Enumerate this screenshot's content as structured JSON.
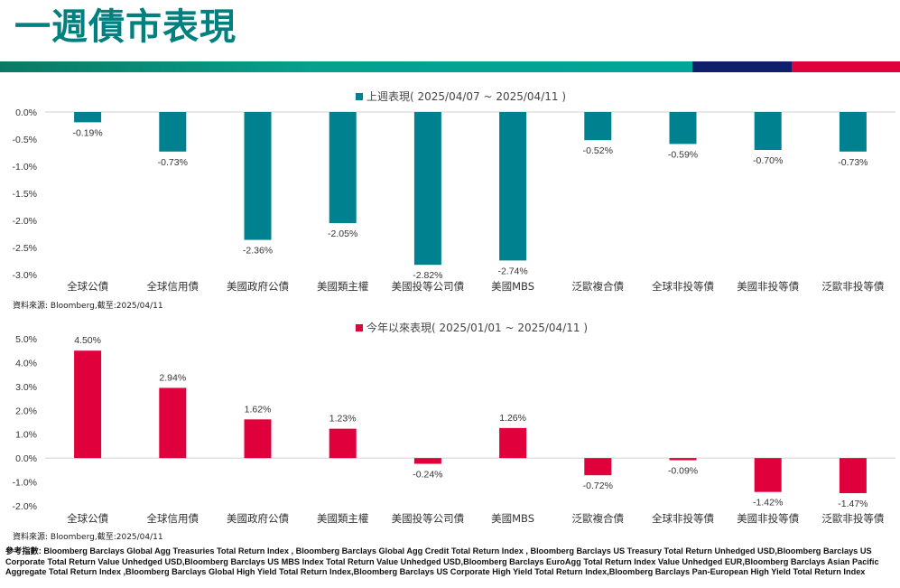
{
  "header": {
    "title": "一週債市表現"
  },
  "colors": {
    "teal": "#00818f",
    "red": "#e0003c",
    "navy": "#0f1f6b",
    "title": "#00807f"
  },
  "chart_data": [
    {
      "type": "bar",
      "legend": "上週表現( 2025/04/07 ~ 2025/04/11 )",
      "color": "#00818f",
      "categories": [
        "全球公債",
        "全球信用債",
        "美國政府公債",
        "美國類主權",
        "美國投等公司債",
        "美國MBS",
        "泛歐複合債",
        "全球非投等債",
        "美國非投等債",
        "泛歐非投等債"
      ],
      "values": [
        -0.19,
        -0.73,
        -2.36,
        -2.05,
        -2.82,
        -2.74,
        -0.52,
        -0.59,
        -0.7,
        -0.73
      ],
      "value_labels": [
        "-0.19%",
        "-0.73%",
        "-2.36%",
        "-2.05%",
        "-2.82%",
        "-2.74%",
        "-0.52%",
        "-0.59%",
        "-0.70%",
        "-0.73%"
      ],
      "ylim": [
        -3.0,
        0.0
      ],
      "y_ticks": [
        0.0,
        -0.5,
        -1.0,
        -1.5,
        -2.0,
        -2.5,
        -3.0
      ],
      "y_tick_labels": [
        "0.0%",
        "-0.5%",
        "-1.0%",
        "-1.5%",
        "-2.0%",
        "-2.5%",
        "-3.0%"
      ],
      "source": "資料來源: Bloomberg,截至:2025/04/11"
    },
    {
      "type": "bar",
      "legend": "今年以來表現( 2025/01/01 ~ 2025/04/11 )",
      "color": "#e0003c",
      "categories": [
        "全球公債",
        "全球信用債",
        "美國政府公債",
        "美國類主權",
        "美國投等公司債",
        "美國MBS",
        "泛歐複合債",
        "全球非投等債",
        "美國非投等債",
        "泛歐非投等債"
      ],
      "values": [
        4.5,
        2.94,
        1.62,
        1.23,
        -0.24,
        1.26,
        -0.72,
        -0.09,
        -1.42,
        -1.47
      ],
      "value_labels": [
        "4.50%",
        "2.94%",
        "1.62%",
        "1.23%",
        "-0.24%",
        "1.26%",
        "-0.72%",
        "-0.09%",
        "-1.42%",
        "-1.47%"
      ],
      "ylim": [
        -2.0,
        5.0
      ],
      "y_ticks": [
        5.0,
        4.0,
        3.0,
        2.0,
        1.0,
        0.0,
        -1.0,
        -2.0
      ],
      "y_tick_labels": [
        "5.0%",
        "4.0%",
        "3.0%",
        "2.0%",
        "1.0%",
        "0.0%",
        "-1.0%",
        "-2.0%"
      ],
      "source": "資料來源: Bloomberg,截至:2025/04/11"
    }
  ],
  "footer": {
    "references": "參考指數: Bloomberg Barclays Global Agg Treasuries Total Return Index , Bloomberg Barclays Global Agg Credit Total Return Index , Bloomberg Barclays US Treasury Total Return Unhedged USD,Bloomberg Barclays US Corporate Total Return Value Unhedged USD,Bloomberg Barclays US MBS Index Total Return Value Unhedged USD,Bloomberg Barclays EuroAgg Total Return Index Value Unhedged EUR,Bloomberg Barclays Asian Pacific Aggregate Total Return Index ,Bloomberg Barclays Global High Yield Total Return Index,Bloomberg Barclays US Corporate High Yield Total Return Index,Bloomberg Barclays Pan-European High Yield Total Return Index"
  }
}
